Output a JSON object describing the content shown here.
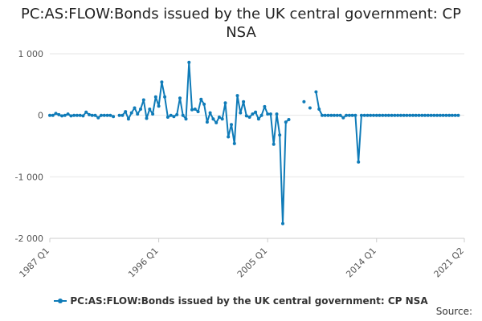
{
  "chart_data": {
    "type": "line",
    "title": "PC:AS:FLOW:Bonds issued by the UK central government: CP NSA",
    "xlabel": "",
    "ylabel": "",
    "ylim": [
      -2000,
      1000
    ],
    "y_ticks": [
      1000,
      0,
      -1000,
      -2000
    ],
    "y_tick_labels": [
      "1 000",
      "0",
      "-1 000",
      "-2 000"
    ],
    "x_range": [
      "1987 Q1",
      "2021 Q2"
    ],
    "x_ticks": [
      "1987 Q1",
      "1996 Q1",
      "2005 Q1",
      "2014 Q1",
      "2021 Q2"
    ],
    "grid": "horizontal",
    "legend_position": "bottom",
    "color": "#0f7bb8",
    "series": [
      {
        "name": "PC:AS:FLOW:Bonds issued by the UK central government: CP NSA",
        "points": [
          [
            "1987 Q1",
            0
          ],
          [
            "1987 Q2",
            0
          ],
          [
            "1987 Q3",
            30
          ],
          [
            "1987 Q4",
            10
          ],
          [
            "1988 Q1",
            -10
          ],
          [
            "1988 Q2",
            0
          ],
          [
            "1988 Q3",
            20
          ],
          [
            "1988 Q4",
            -10
          ],
          [
            "1989 Q1",
            0
          ],
          [
            "1989 Q2",
            0
          ],
          [
            "1989 Q3",
            0
          ],
          [
            "1989 Q4",
            -10
          ],
          [
            "1990 Q1",
            50
          ],
          [
            "1990 Q2",
            10
          ],
          [
            "1990 Q3",
            0
          ],
          [
            "1990 Q4",
            0
          ],
          [
            "1991 Q1",
            -40
          ],
          [
            "1991 Q2",
            0
          ],
          [
            "1991 Q3",
            0
          ],
          [
            "1991 Q4",
            0
          ],
          [
            "1992 Q1",
            0
          ],
          [
            "1992 Q2",
            -20
          ],
          [
            "1992 Q3",
            null
          ],
          [
            "1992 Q4",
            0
          ],
          [
            "1993 Q1",
            0
          ],
          [
            "1993 Q2",
            60
          ],
          [
            "1993 Q3",
            -60
          ],
          [
            "1993 Q4",
            40
          ],
          [
            "1994 Q1",
            120
          ],
          [
            "1994 Q2",
            20
          ],
          [
            "1994 Q3",
            100
          ],
          [
            "1994 Q4",
            250
          ],
          [
            "1995 Q1",
            -50
          ],
          [
            "1995 Q2",
            100
          ],
          [
            "1995 Q3",
            20
          ],
          [
            "1995 Q4",
            300
          ],
          [
            "1996 Q1",
            150
          ],
          [
            "1996 Q2",
            540
          ],
          [
            "1996 Q3",
            300
          ],
          [
            "1996 Q4",
            -30
          ],
          [
            "1997 Q1",
            0
          ],
          [
            "1997 Q2",
            -20
          ],
          [
            "1997 Q3",
            10
          ],
          [
            "1997 Q4",
            280
          ],
          [
            "1998 Q1",
            0
          ],
          [
            "1998 Q2",
            -60
          ],
          [
            "1998 Q3",
            860
          ],
          [
            "1998 Q4",
            90
          ],
          [
            "1999 Q1",
            100
          ],
          [
            "1999 Q2",
            60
          ],
          [
            "1999 Q3",
            260
          ],
          [
            "1999 Q4",
            180
          ],
          [
            "2000 Q1",
            -110
          ],
          [
            "2000 Q2",
            40
          ],
          [
            "2000 Q3",
            -60
          ],
          [
            "2000 Q4",
            -120
          ],
          [
            "2001 Q1",
            -30
          ],
          [
            "2001 Q2",
            -60
          ],
          [
            "2001 Q3",
            200
          ],
          [
            "2001 Q4",
            -350
          ],
          [
            "2002 Q1",
            -150
          ],
          [
            "2002 Q2",
            -460
          ],
          [
            "2002 Q3",
            320
          ],
          [
            "2002 Q4",
            40
          ],
          [
            "2003 Q1",
            220
          ],
          [
            "2003 Q2",
            -10
          ],
          [
            "2003 Q3",
            -30
          ],
          [
            "2003 Q4",
            20
          ],
          [
            "2004 Q1",
            50
          ],
          [
            "2004 Q2",
            -60
          ],
          [
            "2004 Q3",
            0
          ],
          [
            "2004 Q4",
            140
          ],
          [
            "2005 Q1",
            20
          ],
          [
            "2005 Q2",
            20
          ],
          [
            "2005 Q3",
            -470
          ],
          [
            "2005 Q4",
            20
          ],
          [
            "2006 Q1",
            -320
          ],
          [
            "2006 Q2",
            -1760
          ],
          [
            "2006 Q3",
            -110
          ],
          [
            "2006 Q4",
            -70
          ],
          [
            "2007 Q1",
            null
          ],
          [
            "2007 Q2",
            null
          ],
          [
            "2007 Q3",
            null
          ],
          [
            "2007 Q4",
            null
          ],
          [
            "2008 Q1",
            220
          ],
          [
            "2008 Q2",
            null
          ],
          [
            "2008 Q3",
            120
          ],
          [
            "2008 Q4",
            null
          ],
          [
            "2009 Q1",
            380
          ],
          [
            "2009 Q2",
            100
          ],
          [
            "2009 Q3",
            0
          ],
          [
            "2009 Q4",
            0
          ],
          [
            "2010 Q1",
            0
          ],
          [
            "2010 Q2",
            0
          ],
          [
            "2010 Q3",
            0
          ],
          [
            "2010 Q4",
            0
          ],
          [
            "2011 Q1",
            0
          ],
          [
            "2011 Q2",
            -40
          ],
          [
            "2011 Q3",
            0
          ],
          [
            "2011 Q4",
            0
          ],
          [
            "2012 Q1",
            0
          ],
          [
            "2012 Q2",
            0
          ],
          [
            "2012 Q3",
            -760
          ],
          [
            "2012 Q4",
            0
          ],
          [
            "2013 Q1",
            0
          ],
          [
            "2013 Q2",
            0
          ],
          [
            "2013 Q3",
            0
          ],
          [
            "2013 Q4",
            0
          ],
          [
            "2014 Q1",
            0
          ],
          [
            "2014 Q2",
            0
          ],
          [
            "2014 Q3",
            0
          ],
          [
            "2014 Q4",
            0
          ],
          [
            "2015 Q1",
            0
          ],
          [
            "2015 Q2",
            0
          ],
          [
            "2015 Q3",
            0
          ],
          [
            "2015 Q4",
            0
          ],
          [
            "2016 Q1",
            0
          ],
          [
            "2016 Q2",
            0
          ],
          [
            "2016 Q3",
            0
          ],
          [
            "2016 Q4",
            0
          ],
          [
            "2017 Q1",
            0
          ],
          [
            "2017 Q2",
            0
          ],
          [
            "2017 Q3",
            0
          ],
          [
            "2017 Q4",
            0
          ],
          [
            "2018 Q1",
            0
          ],
          [
            "2018 Q2",
            0
          ],
          [
            "2018 Q3",
            0
          ],
          [
            "2018 Q4",
            0
          ],
          [
            "2019 Q1",
            0
          ],
          [
            "2019 Q2",
            0
          ],
          [
            "2019 Q3",
            0
          ],
          [
            "2019 Q4",
            0
          ],
          [
            "2020 Q1",
            0
          ],
          [
            "2020 Q2",
            0
          ],
          [
            "2020 Q3",
            0
          ],
          [
            "2020 Q4",
            0
          ]
        ]
      }
    ]
  },
  "legend": {
    "label": "PC:AS:FLOW:Bonds issued by the UK central government: CP NSA"
  },
  "source_label": "Source:"
}
